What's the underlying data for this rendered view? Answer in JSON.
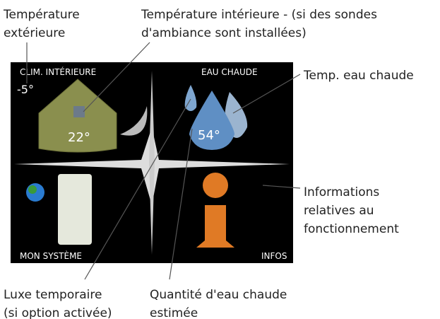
{
  "annotations": {
    "outdoor_temp": [
      "Température",
      "extérieure"
    ],
    "indoor_temp": [
      "Température intérieure - (si des sondes",
      "d'ambiance sont installées)"
    ],
    "hot_water_temp": [
      "Temp. eau chaude"
    ],
    "operating_info": [
      "Informations",
      "relatives au",
      "fonctionnement"
    ],
    "temporary_lux": [
      "Luxe temporaire",
      "(si option activée)"
    ],
    "hot_water_amount": [
      "Quantité d'eau chaude",
      "estimée"
    ]
  },
  "screen": {
    "quadrants": {
      "top_left": "CLIM. INTÉRIEURE",
      "top_right": "EAU CHAUDE",
      "bottom_left": "MON SYSTÈME",
      "bottom_right": "INFOS"
    },
    "outdoor_value": "-5°",
    "indoor_value": "22°",
    "water_value": "54°"
  }
}
